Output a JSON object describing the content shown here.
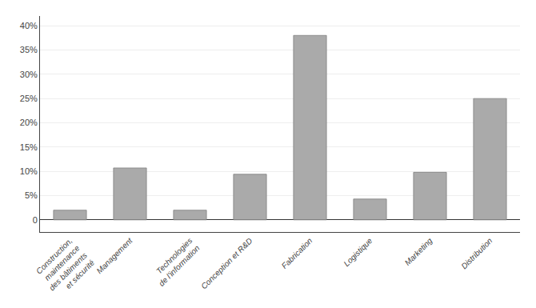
{
  "chart_data": {
    "type": "bar",
    "categories": [
      "Construction,\nmaintenance\ndes bâtiments\net sécurité",
      "Management",
      "Technologies\nde l'information",
      "Conception et R&D",
      "Fabrication",
      "Logistique",
      "Marketing",
      "Distribution"
    ],
    "values": [
      2.0,
      10.7,
      2.0,
      9.4,
      38.0,
      4.3,
      9.8,
      25.0
    ],
    "color": "#aaaaaa",
    "ylim": [
      -2.5,
      42
    ],
    "yticks": [
      0,
      {
        "value": 5,
        "label": "5%"
      },
      {
        "value": 10,
        "label": "10%"
      },
      {
        "value": 15,
        "label": "15%"
      },
      {
        "value": 20,
        "label": "20%"
      },
      {
        "value": 25,
        "label": "25%"
      },
      {
        "value": 30,
        "label": "30%"
      },
      {
        "value": 35,
        "label": "35%"
      },
      {
        "value": 40,
        "label": "40%"
      }
    ],
    "grid": true
  }
}
